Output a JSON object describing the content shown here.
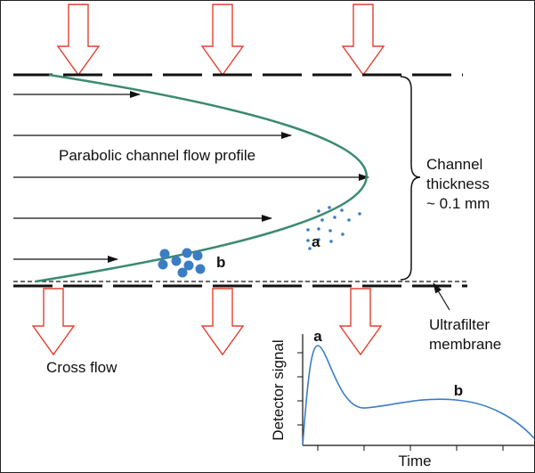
{
  "labels": {
    "flow_profile": "Parabolic channel flow profile",
    "channel": [
      "Channel",
      "thickness",
      "~ 0.1 mm"
    ],
    "membrane": [
      "Ultrafilter",
      "membrane"
    ],
    "cross_flow": "Cross flow",
    "particle_a": "a",
    "particle_b": "b"
  },
  "inset": {
    "y_label": "Detector signal",
    "x_label": "Time",
    "peak_a": "a",
    "peak_b": "b"
  }
}
